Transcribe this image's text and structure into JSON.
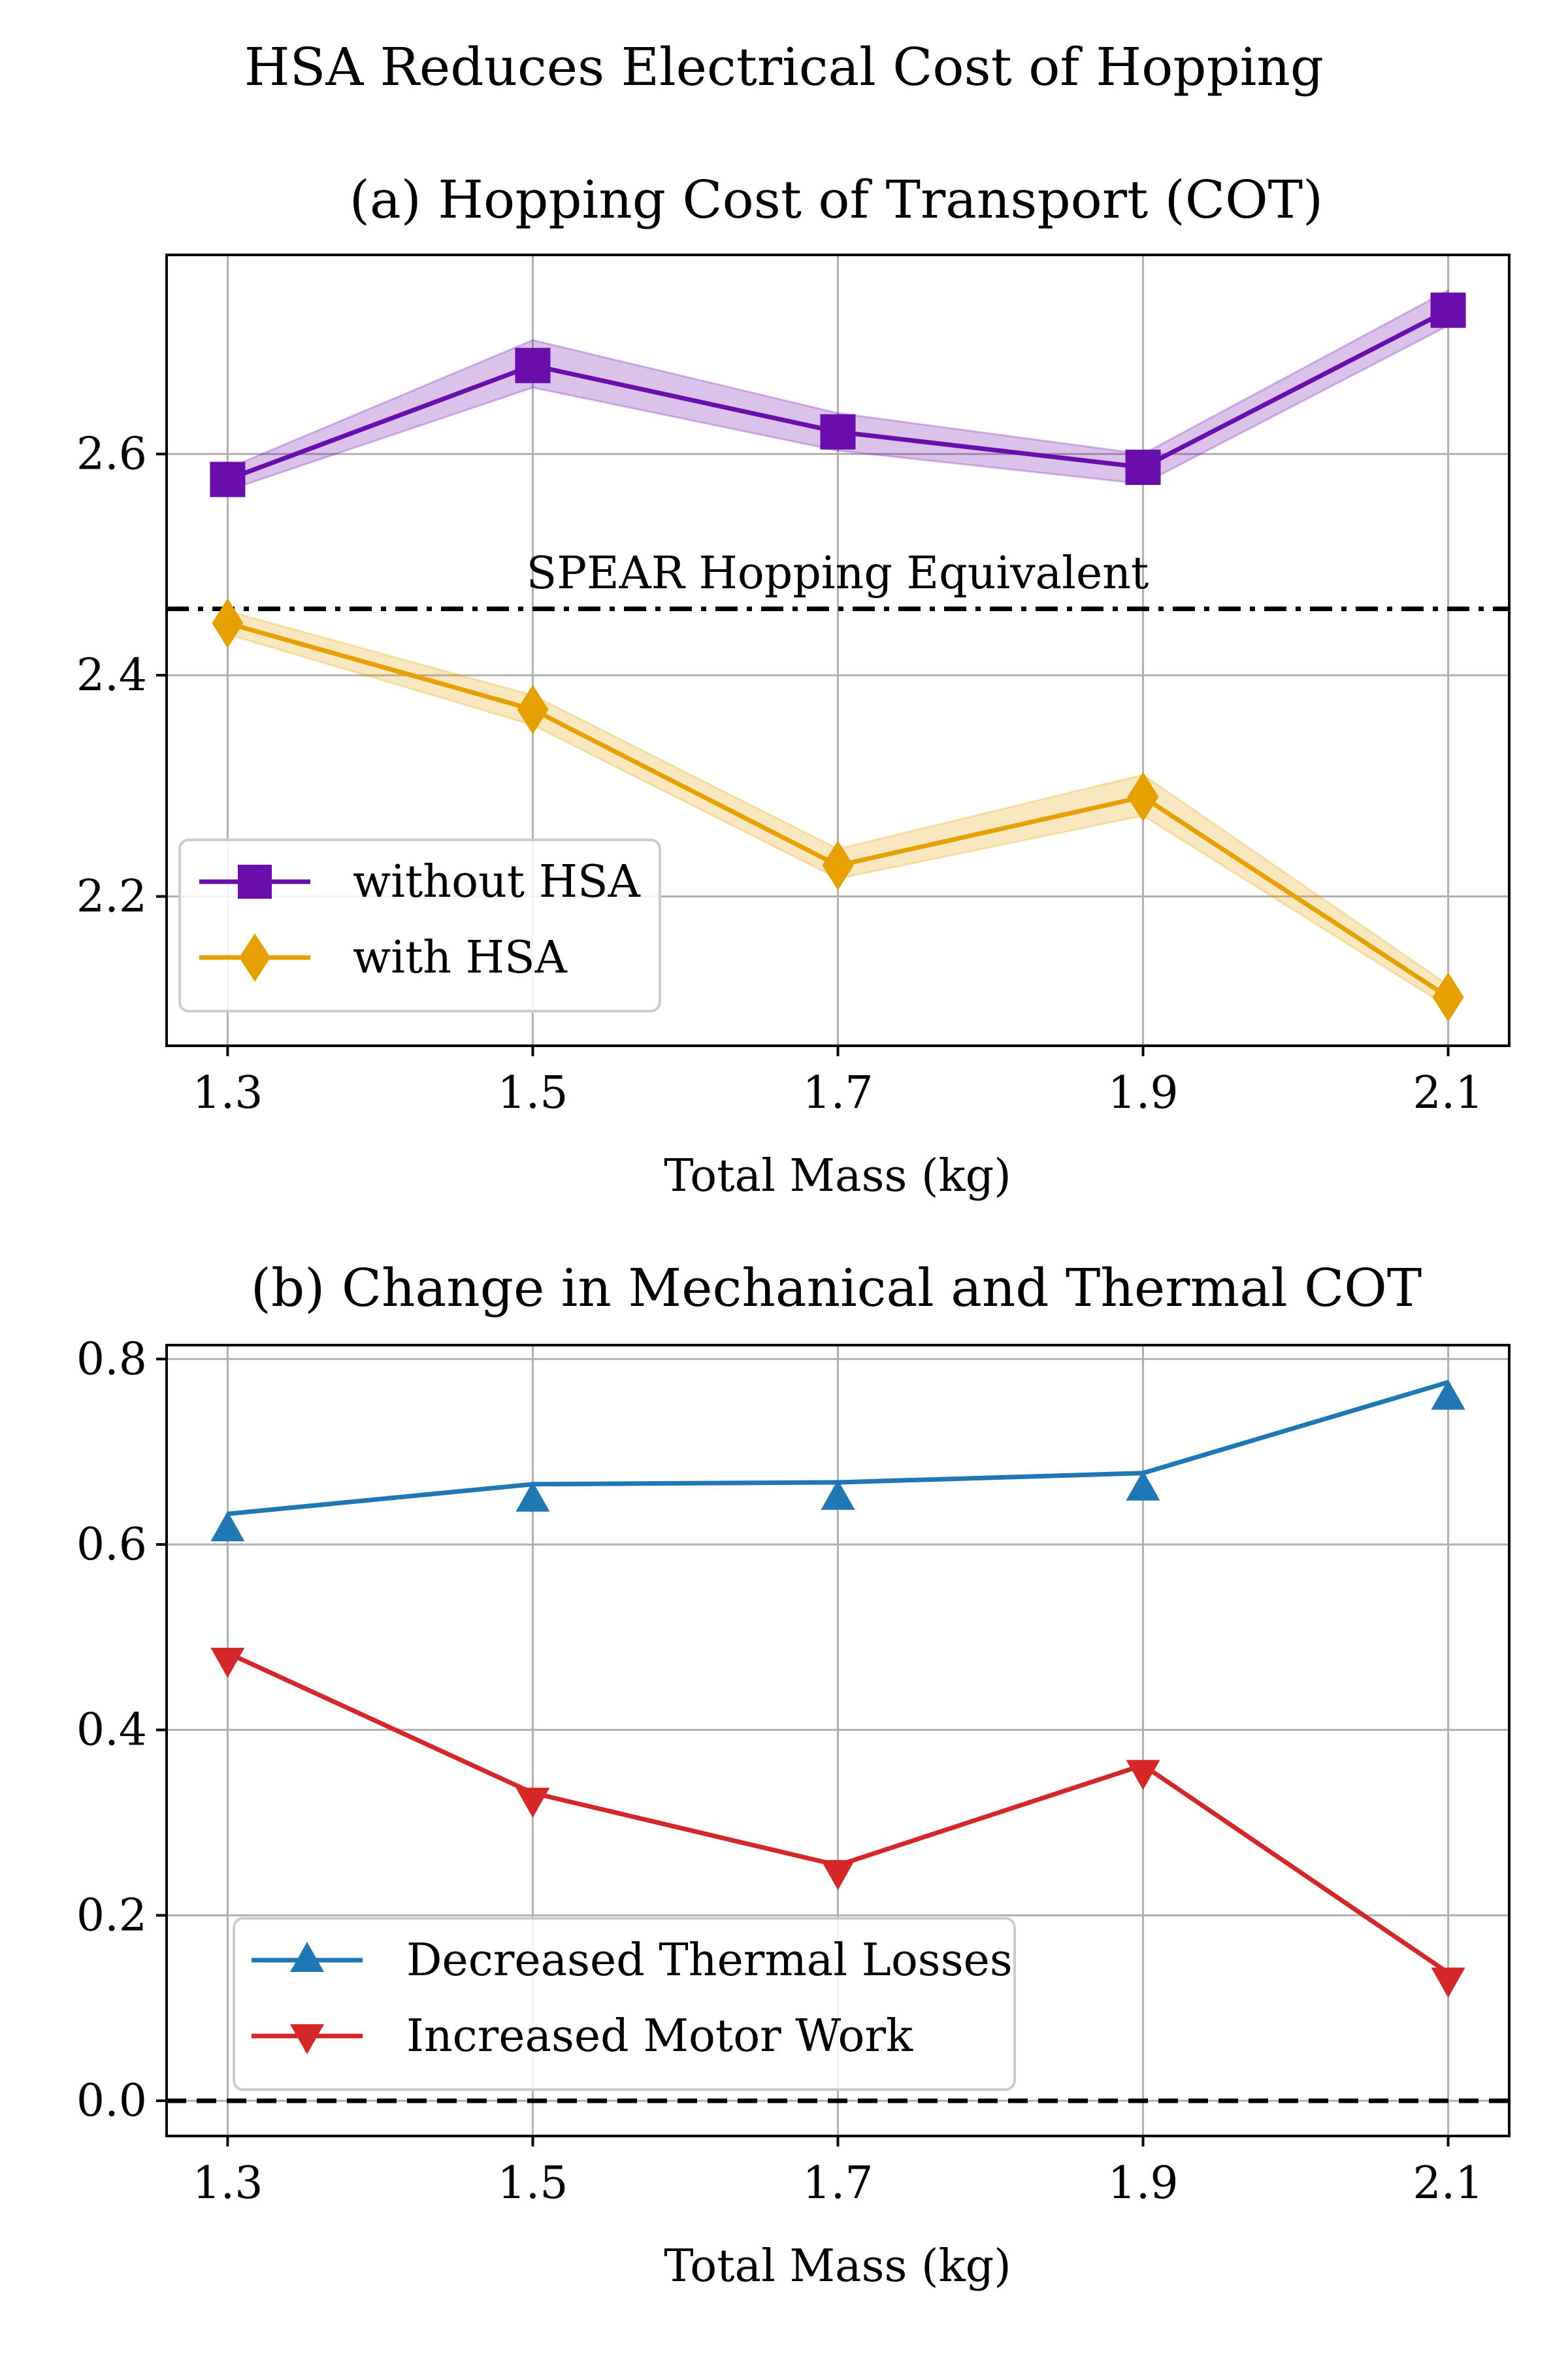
{
  "figure": {
    "suptitle": "HSA Reduces Electrical Cost of Hopping"
  },
  "chart_data": [
    {
      "type": "line",
      "title": "(a) Hopping Cost of Transport (COT)",
      "xlabel": "Total Mass (kg)",
      "ylabel": "",
      "x": [
        1.3,
        1.5,
        1.7,
        1.9,
        2.1
      ],
      "x_tick_labels": [
        "1.3",
        "1.5",
        "1.7",
        "1.9",
        "2.1"
      ],
      "xlim": [
        1.26,
        2.14
      ],
      "ylim": [
        2.065,
        2.78
      ],
      "y_ticks": [
        2.2,
        2.4,
        2.6
      ],
      "y_tick_labels": [
        "2.2",
        "2.4",
        "2.6"
      ],
      "grid": true,
      "legend_position": "lower-left",
      "series": [
        {
          "name": "without HSA",
          "color": "#6a0dad",
          "marker": "square",
          "values": [
            2.577,
            2.68,
            2.62,
            2.588,
            2.73
          ],
          "band_lower": [
            2.567,
            2.66,
            2.603,
            2.573,
            2.716
          ],
          "band_upper": [
            2.587,
            2.703,
            2.637,
            2.6,
            2.748
          ]
        },
        {
          "name": "with HSA",
          "color": "#e6a100",
          "marker": "diamond",
          "values": [
            2.447,
            2.369,
            2.228,
            2.29,
            2.109
          ],
          "band_lower": [
            2.437,
            2.355,
            2.216,
            2.273,
            2.1
          ],
          "band_upper": [
            2.458,
            2.382,
            2.243,
            2.31,
            2.12
          ]
        }
      ],
      "reference_line": {
        "y": 2.46,
        "label": "SPEAR Hopping Equivalent",
        "style": "dashdot",
        "color": "#000000"
      }
    },
    {
      "type": "line",
      "title": "(b) Change in Mechanical and Thermal COT",
      "xlabel": "Total Mass (kg)",
      "ylabel": "",
      "x": [
        1.3,
        1.5,
        1.7,
        1.9,
        2.1
      ],
      "x_tick_labels": [
        "1.3",
        "1.5",
        "1.7",
        "1.9",
        "2.1"
      ],
      "xlim": [
        1.26,
        2.14
      ],
      "ylim": [
        -0.038,
        0.815
      ],
      "y_ticks": [
        0.0,
        0.2,
        0.4,
        0.6,
        0.8
      ],
      "y_tick_labels": [
        "0.0",
        "0.2",
        "0.4",
        "0.6",
        "0.8"
      ],
      "grid": true,
      "legend_position": "lower-left",
      "series": [
        {
          "name": "Decreased Thermal Losses",
          "color": "#1f77b4",
          "marker": "triangle-up",
          "values": [
            0.633,
            0.665,
            0.667,
            0.677,
            0.775
          ]
        },
        {
          "name": "Increased Motor Work",
          "color": "#d62728",
          "marker": "triangle-down",
          "values": [
            0.483,
            0.332,
            0.254,
            0.362,
            0.138
          ]
        }
      ],
      "reference_line": {
        "y": 0.0,
        "label": "",
        "style": "dashed",
        "color": "#000000"
      }
    }
  ]
}
